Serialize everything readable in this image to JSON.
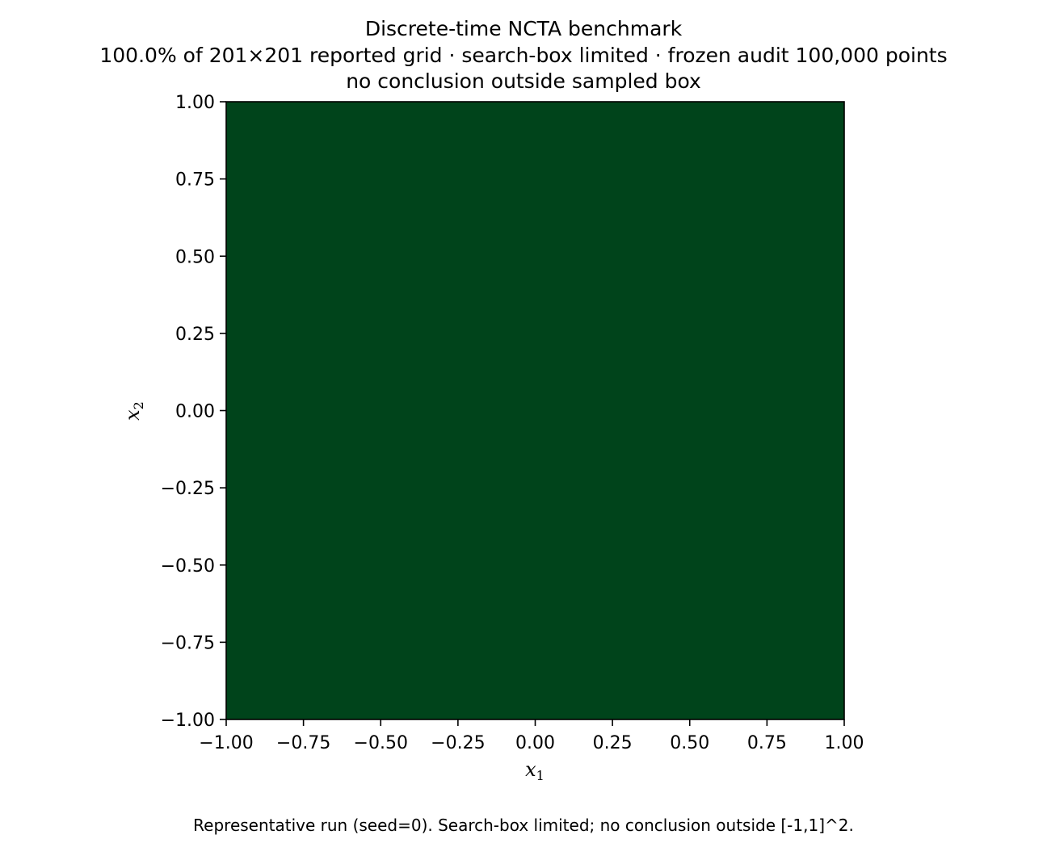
{
  "chart_data": {
    "type": "heatmap",
    "title": "Discrete-time NCTA benchmark",
    "subtitle_lines": [
      "100.0% of 201×201 reported grid · search-box limited · frozen audit 100,000 points",
      "no conclusion outside sampled box"
    ],
    "xlabel": "x",
    "xlabel_sub": "1",
    "ylabel": "x",
    "ylabel_sub": "2",
    "xlim": [
      -1.0,
      1.0
    ],
    "ylim": [
      -1.0,
      1.0
    ],
    "x_ticks": [
      -1.0,
      -0.75,
      -0.5,
      -0.25,
      0.0,
      0.25,
      0.5,
      0.75,
      1.0
    ],
    "x_tick_labels": [
      "−1.00",
      "−0.75",
      "−0.50",
      "−0.25",
      "0.00",
      "0.25",
      "0.50",
      "0.75",
      "1.00"
    ],
    "y_ticks": [
      -1.0,
      -0.75,
      -0.5,
      -0.25,
      0.0,
      0.25,
      0.5,
      0.75,
      1.0
    ],
    "y_tick_labels": [
      "−1.00",
      "−0.75",
      "−0.50",
      "−0.25",
      "0.00",
      "0.25",
      "0.50",
      "0.75",
      "1.00"
    ],
    "region": {
      "x_range": [
        -1.0,
        1.0
      ],
      "y_range": [
        -1.0,
        1.0
      ],
      "coverage_percent": 100.0,
      "color": "#00441b"
    },
    "grid": false,
    "legend": "none"
  },
  "caption": "Representative run (seed=0). Search-box limited; no conclusion outside [-1,1]^2."
}
